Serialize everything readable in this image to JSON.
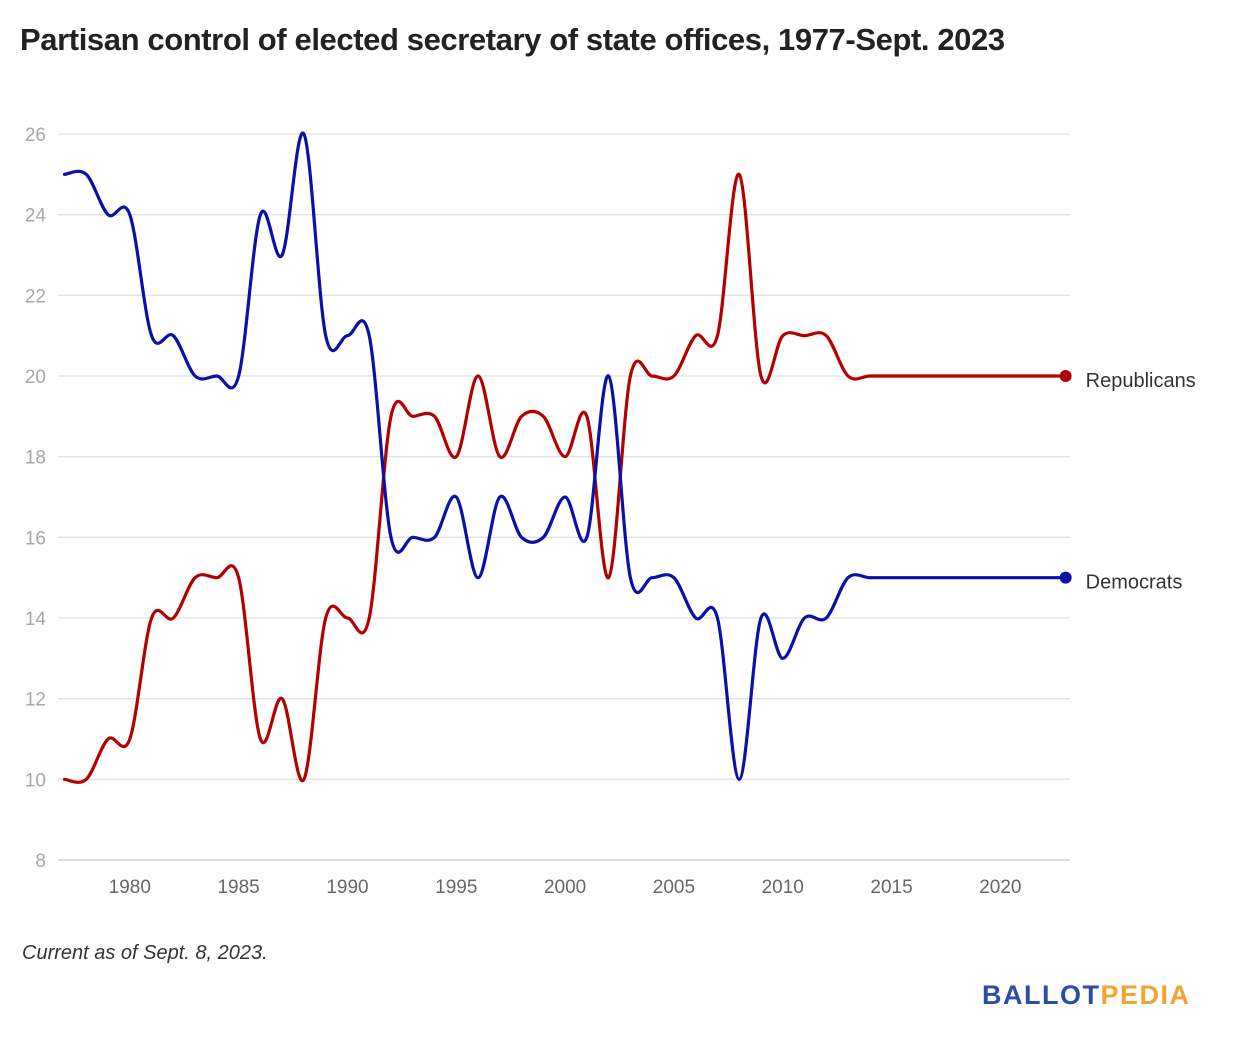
{
  "header": {
    "title": "Partisan control of elected secretary of state offices, 1977-Sept. 2023"
  },
  "footer": {
    "note": "Current as of Sept. 8, 2023.",
    "logo_part1": "BALLOT",
    "logo_part2": "PEDIA"
  },
  "colors": {
    "republicans": "#b30000",
    "democrats": "#0a10a8",
    "grid": "#e2e2e2"
  },
  "chart_data": {
    "type": "line",
    "title": "Partisan control of elected secretary of state offices, 1977-Sept. 2023",
    "xlabel": "",
    "ylabel": "",
    "xlim": [
      1976.7,
      2023.2
    ],
    "ylim": [
      8,
      26
    ],
    "x_ticks": [
      1980,
      1985,
      1990,
      1995,
      2000,
      2005,
      2010,
      2015,
      2020
    ],
    "y_ticks": [
      8,
      10,
      12,
      14,
      16,
      18,
      20,
      22,
      24,
      26
    ],
    "grid": true,
    "legend": "inline labels at line ends (right)",
    "x": [
      1977,
      1978,
      1979,
      1980,
      1981,
      1982,
      1983,
      1984,
      1985,
      1986,
      1987,
      1988,
      1989,
      1990,
      1991,
      1992,
      1993,
      1994,
      1995,
      1996,
      1997,
      1998,
      1999,
      2000,
      2001,
      2002,
      2003,
      2004,
      2005,
      2006,
      2007,
      2008,
      2009,
      2010,
      2011,
      2012,
      2013,
      2014,
      2015,
      2016,
      2017,
      2018,
      2019,
      2020,
      2021,
      2022,
      2023
    ],
    "series": [
      {
        "name": "Republicans",
        "color": "#b30000",
        "values": [
          10,
          10,
          11,
          11,
          14,
          14,
          15,
          15,
          15,
          11,
          12,
          10,
          14,
          14,
          14,
          19,
          19,
          19,
          18,
          20,
          18,
          19,
          19,
          18,
          19,
          15,
          20,
          20,
          20,
          21,
          21,
          25,
          20,
          21,
          21,
          21,
          20,
          20,
          20,
          20,
          20,
          20,
          20,
          20,
          20,
          20,
          20
        ]
      },
      {
        "name": "Democrats",
        "color": "#0a10a8",
        "values": [
          25,
          25,
          24,
          24,
          21,
          21,
          20,
          20,
          20,
          24,
          23,
          26,
          21,
          21,
          21,
          16,
          16,
          16,
          17,
          15,
          17,
          16,
          16,
          17,
          16,
          20,
          15,
          15,
          15,
          14,
          14,
          10,
          14,
          13,
          14,
          14,
          15,
          15,
          15,
          15,
          15,
          15,
          15,
          15,
          15,
          15,
          15
        ]
      }
    ]
  }
}
